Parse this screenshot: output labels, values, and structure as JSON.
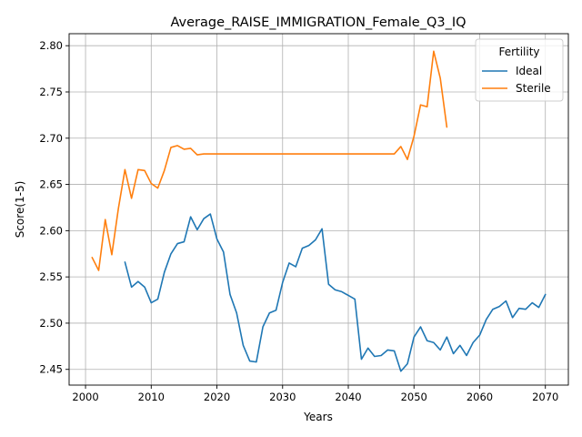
{
  "chart_data": {
    "type": "line",
    "title": "Average_RAISE_IMMIGRATION_Female_Q3_IQ",
    "xlabel": "Years",
    "ylabel": "Score(1-5)",
    "xlim": [
      1997.5,
      2073.5
    ],
    "ylim": [
      2.433,
      2.813
    ],
    "xticks": [
      2000,
      2010,
      2020,
      2030,
      2040,
      2050,
      2060,
      2070
    ],
    "yticks": [
      2.45,
      2.5,
      2.55,
      2.6,
      2.65,
      2.7,
      2.75,
      2.8
    ],
    "xtick_labels": [
      "2000",
      "2010",
      "2020",
      "2030",
      "2040",
      "2050",
      "2060",
      "2070"
    ],
    "ytick_labels": [
      "2.45",
      "2.50",
      "2.55",
      "2.60",
      "2.65",
      "2.70",
      "2.75",
      "2.80"
    ],
    "grid": true,
    "legend": {
      "title": "Fertility",
      "position": "top-right"
    },
    "series": [
      {
        "name": "Ideal",
        "color": "#1f77b4",
        "x": [
          2006,
          2007,
          2008,
          2009,
          2010,
          2011,
          2012,
          2013,
          2014,
          2015,
          2016,
          2017,
          2018,
          2019,
          2020,
          2021,
          2022,
          2023,
          2024,
          2025,
          2026,
          2027,
          2028,
          2029,
          2030,
          2031,
          2032,
          2033,
          2034,
          2035,
          2036,
          2037,
          2038,
          2039,
          2040,
          2041,
          2042,
          2043,
          2044,
          2045,
          2046,
          2047,
          2048,
          2049,
          2050,
          2051,
          2052,
          2053,
          2054,
          2055,
          2056,
          2057,
          2058,
          2059,
          2060,
          2061,
          2062,
          2063,
          2064,
          2065,
          2066,
          2067,
          2068,
          2069,
          2070
        ],
        "values": [
          2.566,
          2.539,
          2.545,
          2.539,
          2.522,
          2.526,
          2.555,
          2.575,
          2.586,
          2.588,
          2.615,
          2.601,
          2.613,
          2.618,
          2.591,
          2.577,
          2.531,
          2.511,
          2.476,
          2.459,
          2.458,
          2.496,
          2.511,
          2.514,
          2.544,
          2.565,
          2.561,
          2.581,
          2.584,
          2.59,
          2.602,
          2.542,
          2.536,
          2.534,
          2.53,
          2.526,
          2.461,
          2.473,
          2.464,
          2.465,
          2.471,
          2.47,
          2.448,
          2.456,
          2.485,
          2.496,
          2.481,
          2.479,
          2.471,
          2.485,
          2.467,
          2.476,
          2.465,
          2.479,
          2.487,
          2.504,
          2.515,
          2.518,
          2.524,
          2.506,
          2.516,
          2.515,
          2.522,
          2.517,
          2.531
        ]
      },
      {
        "name": "Sterile",
        "color": "#ff7f0e",
        "x": [
          2001,
          2002,
          2003,
          2004,
          2005,
          2006,
          2007,
          2008,
          2009,
          2010,
          2011,
          2012,
          2013,
          2014,
          2015,
          2016,
          2017,
          2018,
          2019,
          2020,
          2021,
          2022,
          2023,
          2024,
          2025,
          2026,
          2027,
          2028,
          2029,
          2030,
          2031,
          2032,
          2033,
          2034,
          2035,
          2036,
          2037,
          2038,
          2039,
          2040,
          2041,
          2042,
          2043,
          2044,
          2045,
          2046,
          2047,
          2048,
          2049,
          2050,
          2051,
          2052,
          2053,
          2054,
          2055
        ],
        "values": [
          2.571,
          2.557,
          2.612,
          2.574,
          2.624,
          2.666,
          2.635,
          2.666,
          2.665,
          2.651,
          2.646,
          2.665,
          2.69,
          2.692,
          2.688,
          2.689,
          2.682,
          2.683,
          2.683,
          2.683,
          2.683,
          2.683,
          2.683,
          2.683,
          2.683,
          2.683,
          2.683,
          2.683,
          2.683,
          2.683,
          2.683,
          2.683,
          2.683,
          2.683,
          2.683,
          2.683,
          2.683,
          2.683,
          2.683,
          2.683,
          2.683,
          2.683,
          2.683,
          2.683,
          2.683,
          2.683,
          2.683,
          2.691,
          2.677,
          2.702,
          2.736,
          2.734,
          2.794,
          2.765,
          2.712
        ]
      }
    ]
  }
}
